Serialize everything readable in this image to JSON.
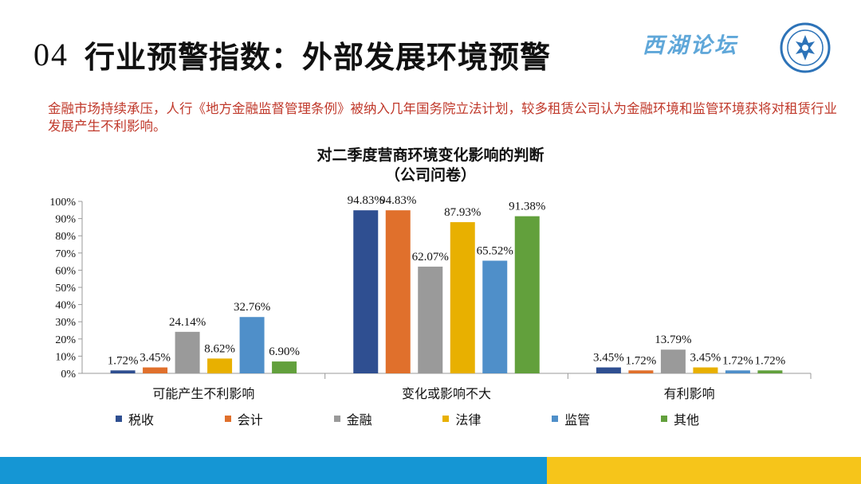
{
  "header": {
    "number": "04",
    "title": "行业预警指数：外部发展环境预警",
    "logo_text": "西湖论坛"
  },
  "intro": {
    "text": "金融市场持续承压，人行《地方金融监督管理条例》被纳入几年国务院立法计划，较多租赁公司认为金融环境和监管环境获将对租赁行业发展产生不利影响。"
  },
  "colors": {
    "title_accent": "#c0392b",
    "footer_blue": "#1596d4",
    "footer_yellow": "#f6c51a"
  },
  "chart_data": {
    "type": "bar",
    "title": "对二季度营商环境变化影响的判断",
    "subtitle": "（公司问卷）",
    "categories": [
      "可能产生不利影响",
      "变化或影响不大",
      "有利影响"
    ],
    "series": [
      {
        "name": "税收",
        "color": "#2f4f91",
        "values": [
          1.72,
          94.83,
          3.45
        ],
        "labels": [
          "1.72%",
          "94.83%",
          "3.45%"
        ]
      },
      {
        "name": "会计",
        "color": "#e0702c",
        "values": [
          3.45,
          94.83,
          1.72
        ],
        "labels": [
          "3.45%",
          "94.83%",
          "1.72%"
        ]
      },
      {
        "name": "金融",
        "color": "#9a9a9a",
        "values": [
          24.14,
          62.07,
          13.79
        ],
        "labels": [
          "24.14%",
          "62.07%",
          "13.79%"
        ]
      },
      {
        "name": "法律",
        "color": "#e8b000",
        "values": [
          8.62,
          87.93,
          3.45
        ],
        "labels": [
          "8.62%",
          "87.93%",
          "3.45%"
        ]
      },
      {
        "name": "监管",
        "color": "#4f8fc9",
        "values": [
          32.76,
          65.52,
          1.72
        ],
        "labels": [
          "32.76%",
          "65.52%",
          "1.72%"
        ]
      },
      {
        "name": "其他",
        "color": "#62a03c",
        "values": [
          6.9,
          91.38,
          1.72
        ],
        "labels": [
          "6.90%",
          "91.38%",
          "1.72%"
        ]
      }
    ],
    "yticks": [
      "0%",
      "10%",
      "20%",
      "30%",
      "40%",
      "50%",
      "60%",
      "70%",
      "80%",
      "90%",
      "100%"
    ],
    "ylim": [
      0,
      100
    ],
    "legend_position": "bottom",
    "grid": false
  }
}
